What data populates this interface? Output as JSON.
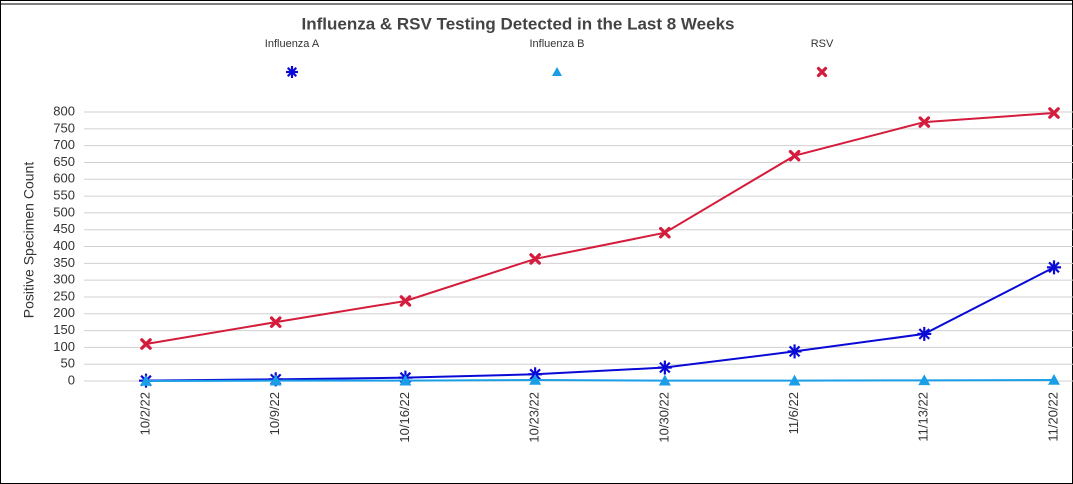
{
  "chart_data": {
    "type": "line",
    "title": "Influenza & RSV Testing Detected in the Last 8 Weeks",
    "y_label": "Positive Specimen Count",
    "categories": [
      "10/2/22",
      "10/9/22",
      "10/16/22",
      "10/23/22",
      "10/30/22",
      "11/6/22",
      "11/13/22",
      "11/20/22"
    ],
    "series": [
      {
        "name": "Influenza A",
        "color": "#0a0ad6",
        "marker": "asterisk",
        "values": [
          1,
          5,
          10,
          20,
          40,
          88,
          140,
          338
        ]
      },
      {
        "name": "Influenza B",
        "color": "#1a9fe6",
        "marker": "triangle",
        "values": [
          0,
          1,
          1,
          3,
          1,
          1,
          2,
          3
        ]
      },
      {
        "name": "RSV",
        "color": "#d41c3c",
        "marker": "cross",
        "values": [
          110,
          175,
          238,
          363,
          441,
          670,
          770,
          797
        ]
      }
    ],
    "ylim": [
      0,
      800
    ],
    "yticks": [
      0,
      50,
      100,
      150,
      200,
      250,
      300,
      350,
      400,
      450,
      500,
      550,
      600,
      650,
      700,
      750,
      800
    ],
    "grid": true,
    "legend": "top"
  }
}
